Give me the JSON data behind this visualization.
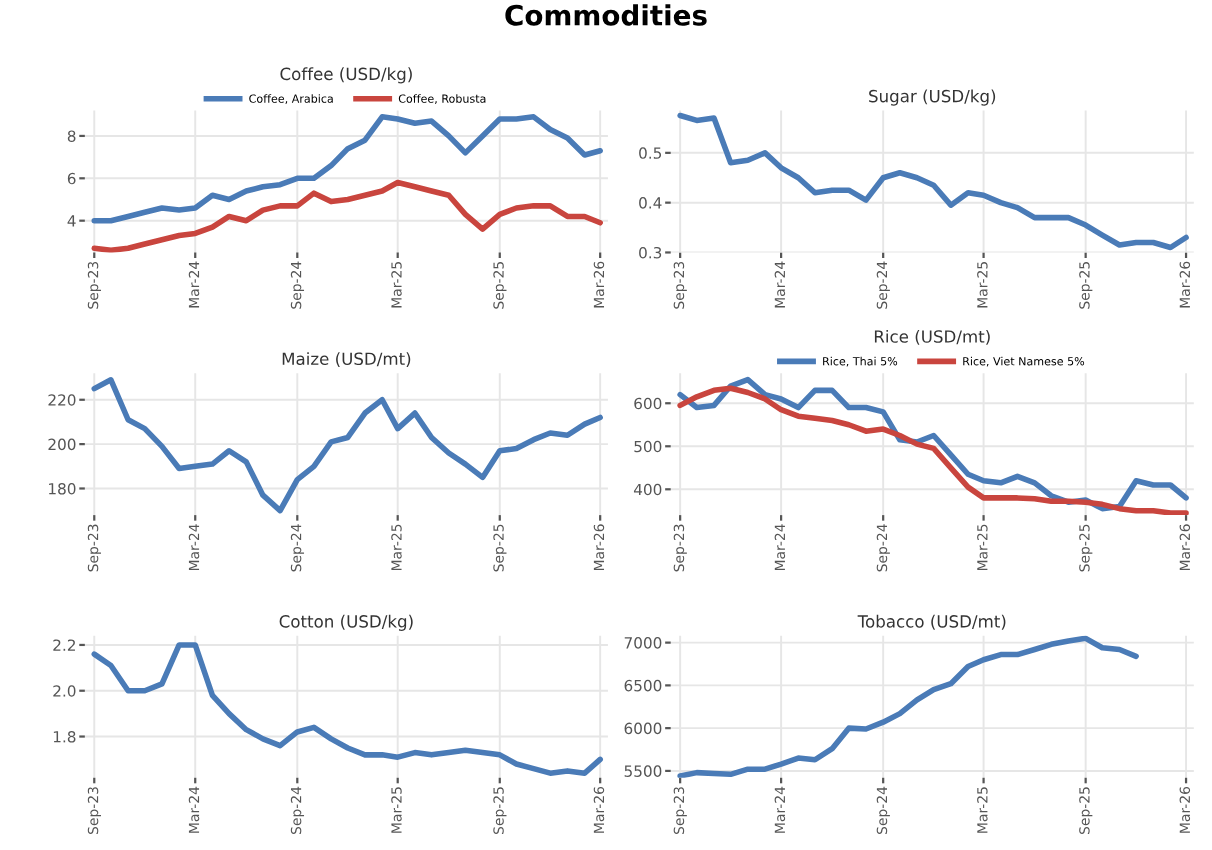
{
  "chart_data": [
    {
      "type": "line",
      "title": "Coffee (USD/kg)",
      "annotations": [
        "Commodities"
      ],
      "legend": "top",
      "grid": true,
      "x": [
        "2023-09",
        "2023-10",
        "2023-11",
        "2023-12",
        "2024-01",
        "2024-02",
        "2024-03",
        "2024-04",
        "2024-05",
        "2024-06",
        "2024-07",
        "2024-08",
        "2024-09",
        "2024-10",
        "2024-11",
        "2024-12",
        "2025-01",
        "2025-02",
        "2025-03",
        "2025-04",
        "2025-05",
        "2025-06",
        "2025-07",
        "2025-08",
        "2025-09",
        "2025-10",
        "2025-11",
        "2025-12",
        "2026-01",
        "2026-02",
        "2026-03"
      ],
      "xlim": [
        "2023-08-15",
        "2026-03-15"
      ],
      "xticks": [
        {
          "value": "2023-09",
          "label": "Sep-23"
        },
        {
          "value": "2024-03",
          "label": "Mar-24"
        },
        {
          "value": "2024-09",
          "label": "Sep-24"
        },
        {
          "value": "2025-03",
          "label": "Mar-25"
        },
        {
          "value": "2025-09",
          "label": "Sep-25"
        },
        {
          "value": "2026-03",
          "label": "Mar-26"
        }
      ],
      "ylim": [
        2.5,
        9.2
      ],
      "yticks": [
        4,
        6,
        8
      ],
      "series": [
        {
          "name": "Coffee, Arabica",
          "color": "#4a7bb7",
          "values": [
            4.0,
            4.0,
            4.2,
            4.4,
            4.6,
            4.5,
            4.6,
            5.2,
            5.0,
            5.4,
            5.6,
            5.7,
            6.0,
            6.0,
            6.6,
            7.4,
            7.8,
            8.9,
            8.8,
            8.6,
            8.7,
            8.0,
            7.2,
            8.0,
            8.8,
            8.8,
            8.9,
            8.3,
            7.9,
            7.1,
            7.3
          ]
        },
        {
          "name": "Coffee, Robusta",
          "color": "#c9453e",
          "values": [
            2.7,
            2.6,
            2.7,
            2.9,
            3.1,
            3.3,
            3.4,
            3.7,
            4.2,
            4.0,
            4.5,
            4.7,
            4.7,
            5.3,
            4.9,
            5.0,
            5.2,
            5.4,
            5.8,
            5.6,
            5.4,
            5.2,
            4.3,
            3.6,
            4.3,
            4.6,
            4.7,
            4.7,
            4.2,
            4.2,
            3.9
          ]
        }
      ]
    },
    {
      "type": "line",
      "title": "Sugar (USD/kg)",
      "grid": true,
      "x": [
        "2023-09",
        "2023-10",
        "2023-11",
        "2023-12",
        "2024-01",
        "2024-02",
        "2024-03",
        "2024-04",
        "2024-05",
        "2024-06",
        "2024-07",
        "2024-08",
        "2024-09",
        "2024-10",
        "2024-11",
        "2024-12",
        "2025-01",
        "2025-02",
        "2025-03",
        "2025-04",
        "2025-05",
        "2025-06",
        "2025-07",
        "2025-08",
        "2025-09",
        "2025-10",
        "2025-11",
        "2025-12",
        "2026-01",
        "2026-02",
        "2026-03"
      ],
      "xlim": [
        "2023-08-15",
        "2026-03-15"
      ],
      "xticks": [
        {
          "value": "2023-09",
          "label": "Sep-23"
        },
        {
          "value": "2024-03",
          "label": "Mar-24"
        },
        {
          "value": "2024-09",
          "label": "Sep-24"
        },
        {
          "value": "2025-03",
          "label": "Mar-25"
        },
        {
          "value": "2025-09",
          "label": "Sep-25"
        },
        {
          "value": "2026-03",
          "label": "Mar-26"
        }
      ],
      "ylim": [
        0.3,
        0.585
      ],
      "yticks": [
        0.3,
        0.4,
        0.5
      ],
      "series": [
        {
          "color": "#4a7bb7",
          "values": [
            0.575,
            0.565,
            0.57,
            0.48,
            0.485,
            0.5,
            0.47,
            0.45,
            0.42,
            0.425,
            0.425,
            0.405,
            0.45,
            0.46,
            0.45,
            0.435,
            0.395,
            0.42,
            0.415,
            0.4,
            0.39,
            0.37,
            0.37,
            0.37,
            0.355,
            0.335,
            0.315,
            0.32,
            0.32,
            0.31,
            0.33
          ]
        }
      ]
    },
    {
      "type": "line",
      "title": "Maize (USD/mt)",
      "grid": true,
      "x": [
        "2023-09",
        "2023-10",
        "2023-11",
        "2023-12",
        "2024-01",
        "2024-02",
        "2024-03",
        "2024-04",
        "2024-05",
        "2024-06",
        "2024-07",
        "2024-08",
        "2024-09",
        "2024-10",
        "2024-11",
        "2024-12",
        "2025-01",
        "2025-02",
        "2025-03",
        "2025-04",
        "2025-05",
        "2025-06",
        "2025-07",
        "2025-08",
        "2025-09",
        "2025-10",
        "2025-11",
        "2025-12",
        "2026-01",
        "2026-02",
        "2026-03"
      ],
      "xlim": [
        "2023-08-15",
        "2026-03-15"
      ],
      "xticks": [
        {
          "value": "2023-09",
          "label": "Sep-23"
        },
        {
          "value": "2024-03",
          "label": "Mar-24"
        },
        {
          "value": "2024-09",
          "label": "Sep-24"
        },
        {
          "value": "2025-03",
          "label": "Mar-25"
        },
        {
          "value": "2025-09",
          "label": "Sep-25"
        },
        {
          "value": "2026-03",
          "label": "Mar-26"
        }
      ],
      "ylim": [
        168,
        232
      ],
      "yticks": [
        180,
        200,
        220
      ],
      "series": [
        {
          "color": "#4a7bb7",
          "values": [
            225,
            229,
            211,
            207,
            199,
            189,
            190,
            191,
            197,
            192,
            177,
            170,
            184,
            190,
            201,
            203,
            214,
            220,
            207,
            214,
            203,
            196,
            191,
            185,
            197,
            198,
            202,
            205,
            204,
            209,
            212
          ]
        }
      ]
    },
    {
      "type": "line",
      "title": "Rice (USD/mt)",
      "legend": "top",
      "grid": true,
      "x": [
        "2023-09",
        "2023-10",
        "2023-11",
        "2023-12",
        "2024-01",
        "2024-02",
        "2024-03",
        "2024-04",
        "2024-05",
        "2024-06",
        "2024-07",
        "2024-08",
        "2024-09",
        "2024-10",
        "2024-11",
        "2024-12",
        "2025-01",
        "2025-02",
        "2025-03",
        "2025-04",
        "2025-05",
        "2025-06",
        "2025-07",
        "2025-08",
        "2025-09",
        "2025-10",
        "2025-11",
        "2025-12",
        "2026-01",
        "2026-02",
        "2026-03"
      ],
      "xlim": [
        "2023-08-15",
        "2026-03-15"
      ],
      "xticks": [
        {
          "value": "2023-09",
          "label": "Sep-23"
        },
        {
          "value": "2024-03",
          "label": "Mar-24"
        },
        {
          "value": "2024-09",
          "label": "Sep-24"
        },
        {
          "value": "2025-03",
          "label": "Mar-25"
        },
        {
          "value": "2025-09",
          "label": "Sep-25"
        },
        {
          "value": "2026-03",
          "label": "Mar-26"
        }
      ],
      "ylim": [
        340,
        670
      ],
      "yticks": [
        400,
        500,
        600
      ],
      "series": [
        {
          "name": "Rice, Thai 5%",
          "color": "#4a7bb7",
          "values": [
            620,
            590,
            595,
            640,
            655,
            620,
            610,
            590,
            630,
            630,
            590,
            590,
            580,
            515,
            510,
            525,
            480,
            435,
            420,
            415,
            430,
            415,
            385,
            370,
            375,
            355,
            360,
            420,
            410,
            410,
            380
          ]
        },
        {
          "name": "Rice, Viet Namese 5%",
          "color": "#c9453e",
          "values": [
            595,
            615,
            630,
            635,
            625,
            610,
            585,
            570,
            565,
            560,
            550,
            535,
            540,
            525,
            505,
            495,
            450,
            405,
            380,
            380,
            380,
            378,
            372,
            372,
            370,
            365,
            355,
            350,
            350,
            345,
            345
          ]
        }
      ]
    },
    {
      "type": "line",
      "title": "Cotton (USD/kg)",
      "grid": true,
      "x": [
        "2023-09",
        "2023-10",
        "2023-11",
        "2023-12",
        "2024-01",
        "2024-02",
        "2024-03",
        "2024-04",
        "2024-05",
        "2024-06",
        "2024-07",
        "2024-08",
        "2024-09",
        "2024-10",
        "2024-11",
        "2024-12",
        "2025-01",
        "2025-02",
        "2025-03",
        "2025-04",
        "2025-05",
        "2025-06",
        "2025-07",
        "2025-08",
        "2025-09",
        "2025-10",
        "2025-11",
        "2025-12",
        "2026-01",
        "2026-02",
        "2026-03"
      ],
      "xlim": [
        "2023-08-15",
        "2026-03-15"
      ],
      "xticks": [
        {
          "value": "2023-09",
          "label": "Sep-23"
        },
        {
          "value": "2024-03",
          "label": "Mar-24"
        },
        {
          "value": "2024-09",
          "label": "Sep-24"
        },
        {
          "value": "2025-03",
          "label": "Mar-25"
        },
        {
          "value": "2025-09",
          "label": "Sep-25"
        },
        {
          "value": "2026-03",
          "label": "Mar-26"
        }
      ],
      "ylim": [
        1.62,
        2.24
      ],
      "yticks": [
        {
          "value": 1.8,
          "label": "1.8"
        },
        {
          "value": 2.0,
          "label": "2.0"
        },
        {
          "value": 2.2,
          "label": "2.2"
        }
      ],
      "series": [
        {
          "color": "#4a7bb7",
          "values": [
            2.16,
            2.11,
            2.0,
            2.0,
            2.03,
            2.2,
            2.2,
            1.98,
            1.9,
            1.83,
            1.79,
            1.76,
            1.82,
            1.84,
            1.79,
            1.75,
            1.72,
            1.72,
            1.71,
            1.73,
            1.72,
            1.73,
            1.74,
            1.73,
            1.72,
            1.68,
            1.66,
            1.64,
            1.65,
            1.64,
            1.7
          ]
        }
      ]
    },
    {
      "type": "line",
      "title": "Tobacco (USD/mt)",
      "grid": true,
      "x": [
        "2023-09",
        "2023-10",
        "2023-11",
        "2023-12",
        "2024-01",
        "2024-02",
        "2024-03",
        "2024-04",
        "2024-05",
        "2024-06",
        "2024-07",
        "2024-08",
        "2024-09",
        "2024-10",
        "2024-11",
        "2024-12",
        "2025-01",
        "2025-02",
        "2025-03",
        "2025-04",
        "2025-05",
        "2025-06",
        "2025-07",
        "2025-08",
        "2025-09",
        "2025-10",
        "2025-11",
        "2025-12"
      ],
      "xlim": [
        "2023-08-15",
        "2026-03-15"
      ],
      "xticks": [
        {
          "value": "2023-09",
          "label": "Sep-23"
        },
        {
          "value": "2024-03",
          "label": "Mar-24"
        },
        {
          "value": "2024-09",
          "label": "Sep-24"
        },
        {
          "value": "2025-03",
          "label": "Mar-25"
        },
        {
          "value": "2025-09",
          "label": "Sep-25"
        },
        {
          "value": "2026-03",
          "label": "Mar-26"
        }
      ],
      "ylim": [
        5420,
        7080
      ],
      "yticks": [
        5500,
        6000,
        6500,
        7000
      ],
      "series": [
        {
          "color": "#4a7bb7",
          "values": [
            5440,
            5480,
            5470,
            5460,
            5520,
            5520,
            5580,
            5650,
            5630,
            5760,
            6000,
            5990,
            6070,
            6170,
            6330,
            6450,
            6520,
            6720,
            6800,
            6860,
            6860,
            6920,
            6980,
            7020,
            7050,
            6940,
            6920,
            6840
          ]
        }
      ]
    }
  ]
}
